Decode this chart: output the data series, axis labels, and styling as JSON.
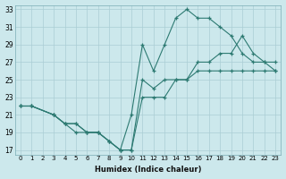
{
  "xlabel": "Humidex (Indice chaleur)",
  "bg_color": "#cce8ec",
  "grid_color": "#aacdd4",
  "line_color": "#2d7a72",
  "xlim": [
    -0.5,
    23.5
  ],
  "ylim": [
    16.5,
    33.5
  ],
  "xticks": [
    0,
    1,
    2,
    3,
    4,
    5,
    6,
    7,
    8,
    9,
    10,
    11,
    12,
    13,
    14,
    15,
    16,
    17,
    18,
    19,
    20,
    21,
    22,
    23
  ],
  "yticks": [
    17,
    19,
    21,
    23,
    25,
    27,
    29,
    31,
    33
  ],
  "line1_x": [
    0,
    1,
    3,
    4,
    5,
    6,
    7,
    8,
    9,
    10,
    11,
    12,
    13,
    14,
    15,
    16,
    17,
    18,
    19,
    20,
    21,
    22,
    23
  ],
  "line1_y": [
    22,
    22,
    21,
    20,
    20,
    19,
    19,
    18,
    17,
    17,
    25,
    24,
    25,
    25,
    25,
    26,
    26,
    26,
    26,
    26,
    26,
    26,
    26
  ],
  "line2_x": [
    0,
    1,
    3,
    4,
    5,
    6,
    7,
    8,
    9,
    10,
    11,
    12,
    13,
    14,
    15,
    16,
    17,
    18,
    19,
    20,
    21,
    22,
    23
  ],
  "line2_y": [
    22,
    22,
    21,
    20,
    20,
    19,
    19,
    18,
    17,
    21,
    29,
    26,
    29,
    32,
    33,
    32,
    32,
    31,
    30,
    28,
    27,
    27,
    27
  ],
  "line3_x": [
    0,
    1,
    3,
    4,
    5,
    6,
    7,
    8,
    9,
    10,
    11,
    12,
    13,
    14,
    15,
    16,
    17,
    18,
    19,
    20,
    21,
    22,
    23
  ],
  "line3_y": [
    22,
    22,
    21,
    20,
    19,
    19,
    19,
    18,
    17,
    17,
    23,
    23,
    23,
    25,
    25,
    27,
    27,
    28,
    28,
    30,
    28,
    27,
    26
  ]
}
